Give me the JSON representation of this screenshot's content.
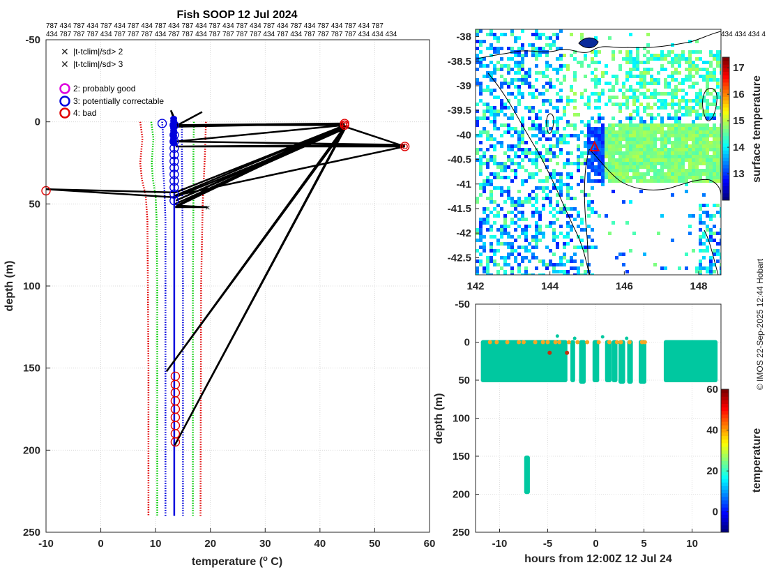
{
  "title": "Fish SOOP 12 Jul 2024",
  "callsign_row1": "787 434 787 434 787 434 787 434 787 434 787 434 787 434 787 434 787 434 787 434 787 434 787 434 787",
  "callsign_row2": "434 787 787 787 434 787 787 787 434 787 787 434 787 787 787 787 434 787 434 787 787 787 787 434 434 434",
  "callsign_map_row": "434 434 434 4",
  "copyright": "© IMOS 22-Sep-2025 12:44 Hobart",
  "legend": {
    "cross_green": "|t-tclim|/sd> 2",
    "cross_red": "|t-tclim|/sd> 3",
    "flag2": "2: probably good",
    "flag3": "3: potentially correctable",
    "flag4": "4: bad"
  },
  "colors": {
    "green": "#00cc00",
    "red": "#e00000",
    "magenta": "#dd00dd",
    "blue": "#0000dd",
    "black": "#000000",
    "points": "#00c8a0",
    "orange": "#f5a623"
  },
  "chart_data": [
    {
      "type": "line",
      "name": "profile",
      "title": "Fish SOOP 12 Jul 2024",
      "xlabel": "temperature (",
      "xlabel_sup": "o",
      "xlabel_tail": " C)",
      "ylabel": "depth (m)",
      "xlim": [
        -10,
        60
      ],
      "ylim": [
        -50,
        250
      ],
      "xticks": [
        -10,
        0,
        10,
        20,
        30,
        40,
        50,
        60
      ],
      "yticks": [
        -50,
        0,
        50,
        100,
        150,
        200,
        250
      ],
      "grid": true,
      "series": [
        {
          "name": "clim -3sd",
          "color": "red",
          "style": "dotted",
          "points": [
            [
              7.2,
              0
            ],
            [
              7.6,
              10
            ],
            [
              7.2,
              25
            ],
            [
              7.5,
              35
            ],
            [
              8.2,
              45
            ],
            [
              8.5,
              60
            ],
            [
              8.6,
              100
            ],
            [
              8.7,
              150
            ],
            [
              8.7,
              240
            ]
          ]
        },
        {
          "name": "clim -2sd",
          "color": "green",
          "style": "dotted",
          "points": [
            [
              9.2,
              0
            ],
            [
              9.6,
              10
            ],
            [
              9.3,
              25
            ],
            [
              9.5,
              35
            ],
            [
              10.0,
              45
            ],
            [
              10.2,
              60
            ],
            [
              10.3,
              100
            ],
            [
              10.3,
              150
            ],
            [
              10.3,
              240
            ]
          ]
        },
        {
          "name": "clim -1sd",
          "color": "blue",
          "style": "dotted",
          "points": [
            [
              11.2,
              0
            ],
            [
              11.4,
              10
            ],
            [
              11.3,
              25
            ],
            [
              11.6,
              40
            ],
            [
              11.8,
              60
            ],
            [
              11.8,
              150
            ],
            [
              11.8,
              240
            ]
          ]
        },
        {
          "name": "clim +1sd",
          "color": "blue",
          "style": "dotted",
          "points": [
            [
              14.8,
              0
            ],
            [
              14.8,
              20
            ],
            [
              14.9,
              50
            ],
            [
              15.0,
              100
            ],
            [
              15.0,
              240
            ]
          ]
        },
        {
          "name": "clim +2sd",
          "color": "green",
          "style": "dotted",
          "points": [
            [
              17.0,
              0
            ],
            [
              16.9,
              20
            ],
            [
              16.9,
              50
            ],
            [
              16.8,
              100
            ],
            [
              16.8,
              240
            ]
          ]
        },
        {
          "name": "clim +3sd",
          "color": "red",
          "style": "dotted",
          "points": [
            [
              19.2,
              0
            ],
            [
              19.0,
              20
            ],
            [
              18.6,
              50
            ],
            [
              18.3,
              100
            ],
            [
              18.2,
              240
            ]
          ]
        },
        {
          "name": "climatology mean",
          "color": "blue",
          "style": "solid",
          "points": [
            [
              13.4,
              0
            ],
            [
              13.4,
              240
            ]
          ]
        },
        {
          "name": "raw profile",
          "color": "black",
          "style": "solid",
          "points": [
            [
              13.2,
              -3
            ],
            [
              12.8,
              -7
            ],
            [
              14.0,
              2
            ],
            [
              18.5,
              -6
            ],
            [
              13.5,
              3
            ],
            [
              44.5,
              1
            ],
            [
              13.6,
              2
            ],
            [
              44.5,
              2
            ],
            [
              13.6,
              12
            ],
            [
              55.5,
              14
            ],
            [
              13.7,
              15
            ],
            [
              55.5,
              15
            ],
            [
              13.5,
              45
            ],
            [
              44.5,
              2
            ],
            [
              13.7,
              48
            ],
            [
              44.5,
              3
            ],
            [
              13.6,
              50
            ],
            [
              44.6,
              4
            ],
            [
              13.5,
              46
            ],
            [
              -10,
              41
            ],
            [
              13.6,
              43
            ],
            [
              44.6,
              2
            ],
            [
              13.6,
              52
            ],
            [
              19.5,
              52
            ],
            [
              13.8,
              51
            ],
            [
              44.5,
              3
            ],
            [
              12.0,
              152
            ],
            [
              44.6,
              4
            ],
            [
              13.5,
              197
            ],
            [
              44.6,
              3
            ],
            [
              55.5,
              15
            ]
          ]
        }
      ],
      "markers": [
        {
          "type": "flag3",
          "x": 13.4,
          "depths": [
            2,
            8,
            12,
            16,
            20,
            24,
            28,
            32,
            36,
            40,
            44,
            48
          ]
        },
        {
          "type": "flag3",
          "x": 11.2,
          "depths": [
            1
          ]
        },
        {
          "type": "flag4",
          "x": 13.6,
          "depths": [
            155,
            160,
            165,
            170,
            175,
            180,
            185,
            190,
            195
          ]
        },
        {
          "type": "flag4",
          "x": 44.5,
          "depths": [
            2,
            1
          ]
        },
        {
          "type": "flag4",
          "x": 55.5,
          "depths": [
            15
          ]
        },
        {
          "type": "flag4",
          "x": -10,
          "depths": [
            42
          ]
        },
        {
          "type": "cross_red",
          "x": 19.5,
          "depths": [
            52
          ]
        }
      ]
    },
    {
      "type": "heatmap",
      "name": "surface temperature map",
      "xticks": [
        142,
        144,
        146,
        148
      ],
      "yticks": [
        -38,
        -38.5,
        -39,
        -39.5,
        -40,
        -40.5,
        -41,
        -41.5,
        -42,
        -42.5
      ],
      "xlim": [
        142,
        148.6
      ],
      "ylim": [
        -42.85,
        -37.85
      ],
      "colorbar_label": "surface temperature",
      "colorbar_range": [
        12,
        17.4
      ],
      "colorbar_ticks": [
        13,
        14,
        15,
        16,
        17
      ],
      "station": {
        "lon": 145.2,
        "lat": -40.25,
        "marker": "triangle"
      }
    },
    {
      "type": "scatter",
      "name": "time depth section",
      "xlabel": "hours from 12:00Z 12 Jul 24",
      "ylabel": "depth (m)",
      "xlim": [
        -12.5,
        13
      ],
      "ylim": [
        -50,
        250
      ],
      "xticks": [
        -10,
        -5,
        0,
        5,
        10
      ],
      "yticks": [
        -50,
        0,
        50,
        100,
        150,
        200,
        250
      ],
      "colorbar_label": "temperature",
      "colorbar_range": [
        -10,
        60
      ],
      "colorbar_ticks": [
        0,
        20,
        40,
        60
      ],
      "blocks": [
        {
          "x0": -11.8,
          "x1": -3.1,
          "d0": 0,
          "d1": 50,
          "value": 14
        },
        {
          "x0": -2.5,
          "x1": -2.3,
          "d0": 0,
          "d1": 50,
          "value": 14
        },
        {
          "x0": -1.6,
          "x1": -1.2,
          "d0": 0,
          "d1": 52,
          "value": 14
        },
        {
          "x0": -0.2,
          "x1": 0.2,
          "d0": 0,
          "d1": 50,
          "value": 14
        },
        {
          "x0": 1.1,
          "x1": 1.5,
          "d0": 0,
          "d1": 50,
          "value": 14
        },
        {
          "x0": 1.8,
          "x1": 2.1,
          "d0": 0,
          "d1": 50,
          "value": 14
        },
        {
          "x0": 2.5,
          "x1": 2.9,
          "d0": 0,
          "d1": 52,
          "value": 14
        },
        {
          "x0": 3.4,
          "x1": 3.7,
          "d0": 0,
          "d1": 52,
          "value": 14
        },
        {
          "x0": 4.6,
          "x1": 5.1,
          "d0": 0,
          "d1": 52,
          "value": 14
        },
        {
          "x0": 7.2,
          "x1": 12.5,
          "d0": 0,
          "d1": 50,
          "value": 14
        },
        {
          "x0": -7.3,
          "x1": -7.0,
          "d0": 152,
          "d1": 197,
          "value": 14
        }
      ],
      "hot_points": [
        {
          "x": -11.0,
          "d": 0,
          "value": 44
        },
        {
          "x": -10.3,
          "d": 0,
          "value": 44
        },
        {
          "x": -9.2,
          "d": 0,
          "value": 44
        },
        {
          "x": -8.0,
          "d": 0,
          "value": 44
        },
        {
          "x": -7.5,
          "d": 0,
          "value": 44
        },
        {
          "x": -6.3,
          "d": 0,
          "value": 44
        },
        {
          "x": -5.5,
          "d": 0,
          "value": 44
        },
        {
          "x": -5.0,
          "d": 0,
          "value": 44
        },
        {
          "x": -4.2,
          "d": 0,
          "value": 44
        },
        {
          "x": -3.8,
          "d": 0,
          "value": 44
        },
        {
          "x": -2.8,
          "d": 0,
          "value": 44
        },
        {
          "x": -1.9,
          "d": 0,
          "value": 44
        },
        {
          "x": -0.9,
          "d": 0,
          "value": 44
        },
        {
          "x": 0.3,
          "d": 0,
          "value": 44
        },
        {
          "x": 1.4,
          "d": 0,
          "value": 44
        },
        {
          "x": 2.2,
          "d": 0,
          "value": 44
        },
        {
          "x": 2.6,
          "d": 0,
          "value": 44
        },
        {
          "x": 3.5,
          "d": 0,
          "value": 44
        },
        {
          "x": 4.8,
          "d": 0,
          "value": 44
        },
        {
          "x": 5.1,
          "d": 0,
          "value": 44
        },
        {
          "x": -4.8,
          "d": 14,
          "value": 55
        },
        {
          "x": -3.0,
          "d": 14,
          "value": 55
        }
      ],
      "stray_points": [
        {
          "x": -4.0,
          "d": -8,
          "value": 14
        },
        {
          "x": -2.2,
          "d": -5,
          "value": 14
        },
        {
          "x": 0.7,
          "d": -7,
          "value": 14
        },
        {
          "x": 3.2,
          "d": -5,
          "value": 14
        },
        {
          "x": 4.7,
          "d": 5,
          "value": 14
        }
      ]
    }
  ]
}
